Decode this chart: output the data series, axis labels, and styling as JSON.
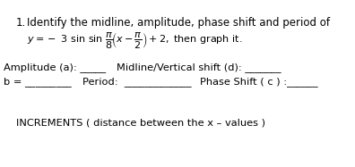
{
  "background_color": "#ffffff",
  "text_color": "#000000",
  "font_family": "sans-serif",
  "line1_num": "1.",
  "line1_text": "Identify the midline, amplitude, phase shift and period of",
  "line2_eq": "$y = -\\ 3\\ \\mathrm{sin}\\ \\mathrm{sin}\\ \\dfrac{\\pi}{8}\\!\\left(x - \\dfrac{\\pi}{2}\\right) + 2,\\ \\mathrm{then\\ graph\\ it.}$",
  "line3_left": "Amplitude (a): _____",
  "line3_right": "Midline/Vertical shift (d): _______",
  "line4_b": "b = _________",
  "line4_period": "Period:  _____________",
  "line4_phase": "Phase Shift ( c ) :______",
  "line5": "INCREMENTS ( distance between the x – values )",
  "fs_title": 8.5,
  "fs_eq": 8.0,
  "fs_body": 8.2,
  "fs_increments": 8.2
}
